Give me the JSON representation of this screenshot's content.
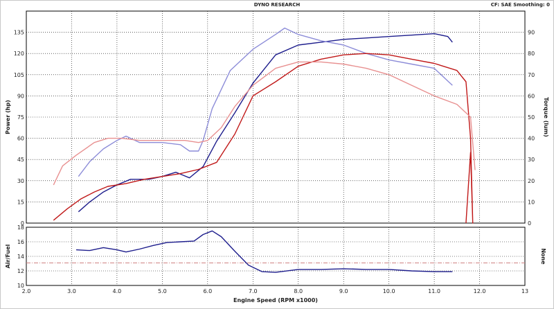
{
  "header": {
    "title": "DYNO RESEARCH",
    "correction": "CF: SAE  Smoothing: 0"
  },
  "chart_data": {
    "type": "line",
    "xlabel": "Engine Speed (RPM x1000)",
    "xlim": [
      2.0,
      13.0
    ],
    "xticks": [
      "2.0",
      "3.0",
      "4.0",
      "5.0",
      "6.0",
      "7.0",
      "8.0",
      "9.0",
      "10.0",
      "11.0",
      "12.0",
      "13"
    ],
    "top_panel": {
      "ylabel_left": "Power (hp)",
      "ylabel_right": "Torque (lum)",
      "ylim_left": [
        0,
        150
      ],
      "ylim_right": [
        0,
        100
      ],
      "yticks_left": [
        "0",
        "15",
        "30",
        "45",
        "60",
        "75",
        "90",
        "105",
        "120",
        "135"
      ],
      "yticks_right": [
        "0",
        "10",
        "20",
        "30",
        "40",
        "50",
        "60",
        "70",
        "80",
        "90"
      ],
      "grid": true,
      "series": [
        {
          "color": "#1c1c8c",
          "axis": "left",
          "x": [
            3.15,
            3.4,
            3.7,
            4.0,
            4.3,
            4.7,
            5.0,
            5.3,
            5.6,
            5.9,
            6.2,
            6.6,
            7.0,
            7.5,
            8.0,
            8.5,
            9.0,
            9.5,
            10.0,
            10.5,
            11.0,
            11.3,
            11.4
          ],
          "y": [
            8,
            15,
            22,
            27,
            31,
            31,
            33,
            36,
            32,
            40,
            58,
            78,
            99,
            119,
            126,
            128,
            130,
            131,
            132,
            133,
            134,
            132,
            128
          ]
        },
        {
          "color": "#8c8cd8",
          "axis": "right",
          "x": [
            3.15,
            3.4,
            3.7,
            4.0,
            4.2,
            4.5,
            5.0,
            5.4,
            5.6,
            5.8,
            5.9,
            6.1,
            6.5,
            7.0,
            7.5,
            7.7,
            8.0,
            8.5,
            9.0,
            9.5,
            10.0,
            10.5,
            11.0,
            11.3,
            11.4
          ],
          "y": [
            22,
            29,
            35,
            39,
            41,
            38,
            38,
            37,
            34,
            34,
            39,
            54,
            72,
            82,
            89,
            92,
            89,
            86,
            84,
            80,
            77,
            75,
            73,
            67,
            65
          ]
        },
        {
          "color": "#c01818",
          "axis": "left",
          "x": [
            2.6,
            2.9,
            3.2,
            3.5,
            3.8,
            4.2,
            4.6,
            5.0,
            5.4,
            5.8,
            6.2,
            6.6,
            7.0,
            7.5,
            8.0,
            8.5,
            9.0,
            9.5,
            10.0,
            10.5,
            11.0,
            11.5,
            11.7,
            11.8,
            11.85,
            11.8,
            11.7
          ],
          "y": [
            2,
            10,
            17,
            22,
            26,
            28,
            31,
            33,
            35,
            38,
            43,
            63,
            90,
            100,
            111,
            116,
            119,
            120,
            119,
            116,
            113,
            108,
            100,
            60,
            0,
            50,
            0
          ]
        },
        {
          "color": "#e89090",
          "axis": "right",
          "x": [
            2.6,
            2.8,
            3.1,
            3.5,
            3.8,
            4.1,
            4.5,
            5.0,
            5.5,
            5.8,
            6.0,
            6.3,
            6.6,
            7.0,
            7.5,
            8.0,
            8.5,
            9.0,
            9.5,
            10.0,
            10.5,
            11.0,
            11.5,
            11.8,
            11.9
          ],
          "y": [
            18,
            27,
            32,
            38,
            40,
            40,
            39,
            39,
            39,
            38,
            39,
            45,
            55,
            65,
            73,
            76,
            76,
            75,
            73,
            70,
            65,
            60,
            56,
            50,
            25
          ]
        }
      ]
    },
    "bottom_panel": {
      "ylabel_left": "Air/Fuel",
      "ylabel_right": "None",
      "ylim": [
        10,
        18
      ],
      "yticks": [
        "10",
        "12",
        "14",
        "16",
        "18"
      ],
      "grid": true,
      "reference_line": 13.1,
      "series": [
        {
          "color": "#1c1c8c",
          "x": [
            3.1,
            3.4,
            3.7,
            4.0,
            4.2,
            4.5,
            4.8,
            5.1,
            5.4,
            5.7,
            5.9,
            6.1,
            6.3,
            6.6,
            6.9,
            7.2,
            7.5,
            8.0,
            8.5,
            9.0,
            9.5,
            10.0,
            10.5,
            11.0,
            11.4
          ],
          "y": [
            14.9,
            14.8,
            15.2,
            14.9,
            14.6,
            15.0,
            15.5,
            15.9,
            16.0,
            16.1,
            17.0,
            17.5,
            16.7,
            14.7,
            12.8,
            11.9,
            11.8,
            12.2,
            12.2,
            12.3,
            12.2,
            12.2,
            12.0,
            11.9,
            11.9
          ]
        }
      ]
    }
  }
}
